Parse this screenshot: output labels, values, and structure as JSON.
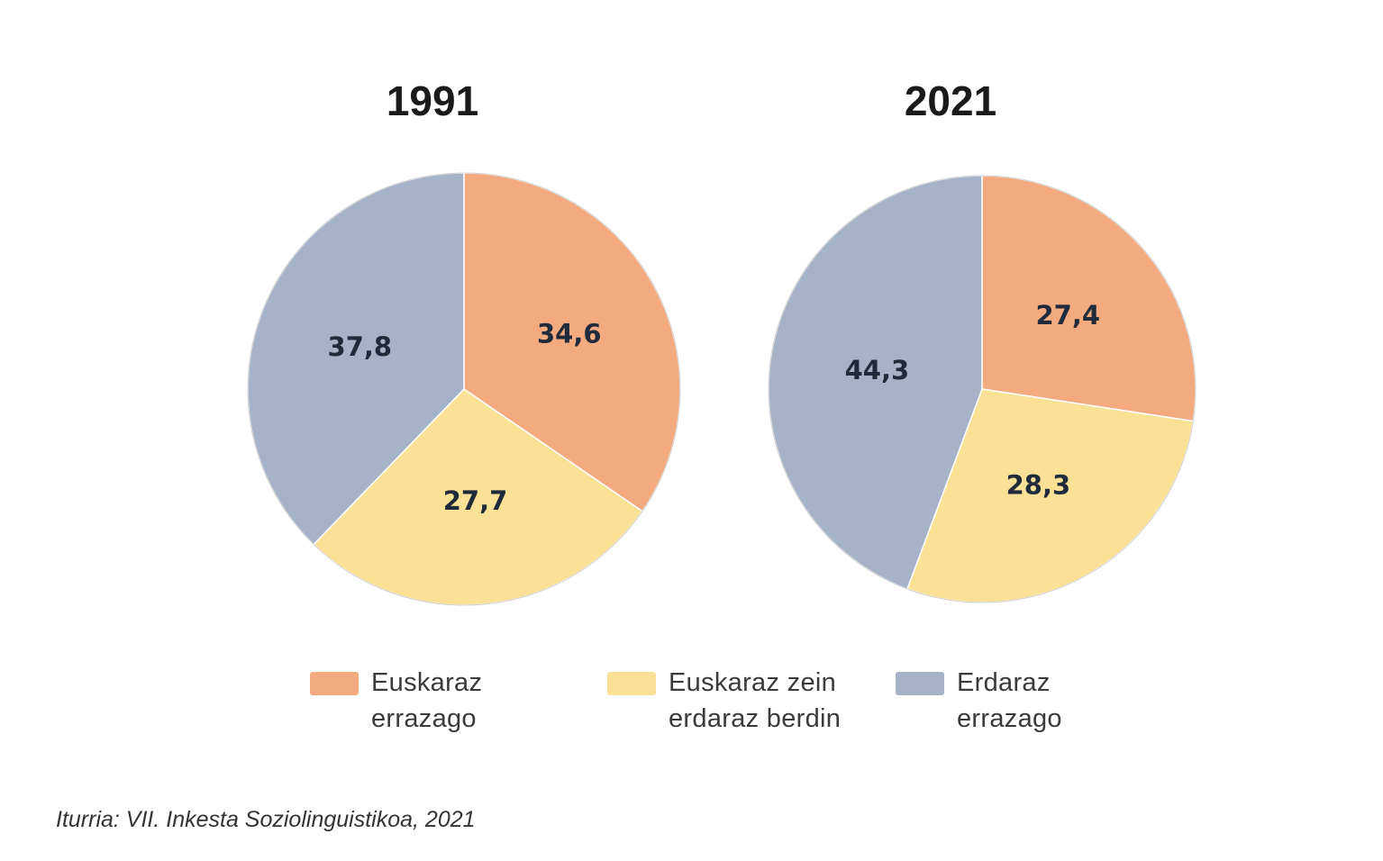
{
  "chart_data": [
    {
      "type": "pie",
      "title": "1991",
      "categories": [
        "Euskaraz errazago",
        "Euskaraz zein erdaraz berdin",
        "Erdaraz errazago"
      ],
      "values": [
        34.6,
        27.7,
        37.8
      ],
      "data_labels": [
        "34,6",
        "27,7",
        "37,8"
      ]
    },
    {
      "type": "pie",
      "title": "2021",
      "categories": [
        "Euskaraz errazago",
        "Euskaraz zein erdaraz berdin",
        "Erdaraz errazago"
      ],
      "values": [
        27.4,
        28.3,
        44.3
      ],
      "data_labels": [
        "27,4",
        "28,3",
        "44,3"
      ]
    }
  ],
  "legend": {
    "placement": "bottom",
    "items": [
      {
        "line1": "Euskaraz",
        "line2": "errazago",
        "color": "#f2aa7e"
      },
      {
        "line1": "Euskaraz zein",
        "line2": "erdaraz berdin",
        "color": "#fbe196"
      },
      {
        "line1": "Erdaraz",
        "line2": "errazago",
        "color": "#a6b2c8"
      }
    ]
  },
  "colors": [
    "#f2aa7e",
    "#fbe196",
    "#a6b2c8"
  ],
  "source": "Iturria: VII. Inkesta Soziolinguistikoa, 2021"
}
